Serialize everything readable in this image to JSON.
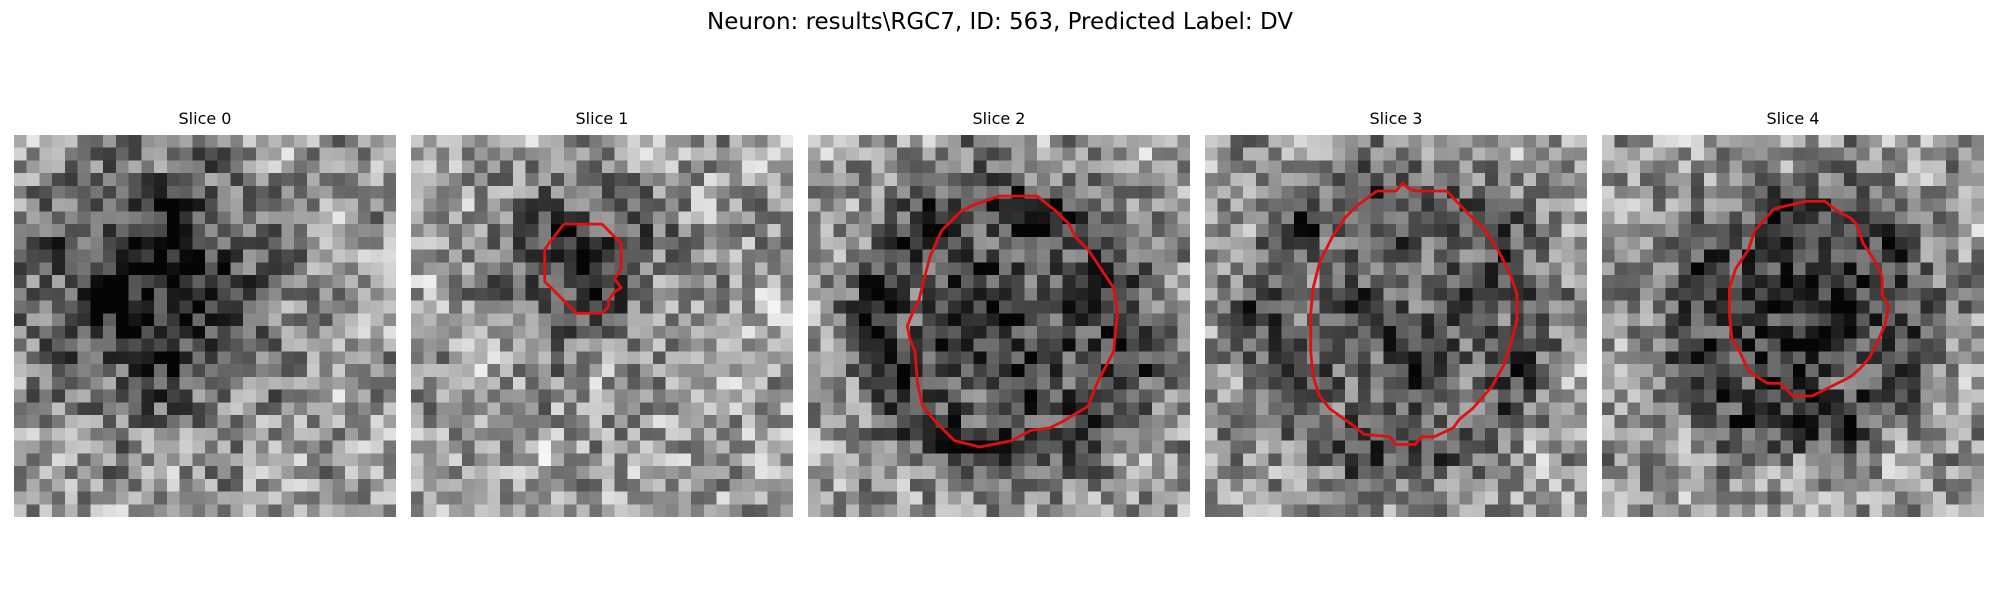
{
  "figure": {
    "title": "Neuron: results\\RGC7, ID: 563, Predicted Label: DV"
  },
  "overlay_color": "#e01010",
  "panels": [
    {
      "title": "Slice 0"
    },
    {
      "title": "Slice 1"
    },
    {
      "title": "Slice 2"
    },
    {
      "title": "Slice 3"
    },
    {
      "title": "Slice 4"
    }
  ]
}
